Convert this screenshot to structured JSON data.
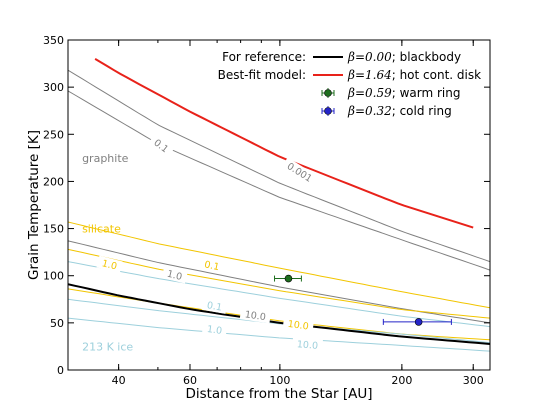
{
  "chart_data": {
    "type": "line",
    "xlabel": "Distance from the Star [AU]",
    "ylabel": "Grain Temperature [K]",
    "xscale": "log",
    "xlim": [
      30,
      330
    ],
    "ylim": [
      0,
      350
    ],
    "xticks": [
      40,
      60,
      100,
      200,
      300
    ],
    "yticks": [
      0,
      50,
      100,
      150,
      200,
      250,
      300,
      350
    ],
    "grid": false,
    "legend": {
      "placement": "top-right",
      "header_reference": "For reference:",
      "header_model": "Best-fit model:"
    },
    "colors": {
      "blackbody": "#000000",
      "disk": "#e8221a",
      "graphite": "#808080",
      "silicate": "#f2c500",
      "ice": "#9dd0dc",
      "warm_ring": "#1e6e1e",
      "cold_ring": "#2424c8"
    },
    "series": [
      {
        "id": "blackbody",
        "name": "β=0.00; blackbody",
        "legend_beta": "β=0.00",
        "legend_desc": "; blackbody",
        "color": "#000000",
        "width": 2,
        "x": [
          30,
          40,
          60,
          100,
          200,
          330
        ],
        "y": [
          91,
          79,
          64.5,
          50,
          35.4,
          27.6
        ]
      },
      {
        "id": "disk",
        "name": "β=1.64; hot cont. disk",
        "legend_beta": "β=1.64",
        "legend_desc": "; hot cont. disk",
        "color": "#e8221a",
        "width": 2,
        "x": [
          35,
          40,
          60,
          100,
          200,
          300
        ],
        "y": [
          330,
          315,
          274,
          226,
          175,
          151
        ]
      }
    ],
    "points": [
      {
        "id": "warm_ring",
        "name": "β=0.59; warm ring",
        "legend_beta": "β=0.59",
        "legend_desc": "; warm ring",
        "color": "#1e6e1e",
        "x": 105,
        "y": 97,
        "xerr": [
          97,
          113
        ]
      },
      {
        "id": "cold_ring",
        "name": "β=0.32; cold ring",
        "legend_beta": "β=0.32",
        "legend_desc": "; cold ring",
        "color": "#2424c8",
        "x": 220,
        "y": 51,
        "xerr": [
          180,
          265
        ]
      }
    ],
    "reference_curves": [
      {
        "material": "graphite",
        "size_label": "0.1",
        "color": "#808080",
        "x": [
          30,
          50,
          100,
          200,
          330
        ],
        "y": [
          318,
          260,
          198,
          147,
          115
        ]
      },
      {
        "material": "graphite",
        "size_label": "0.001",
        "color": "#808080",
        "x": [
          30,
          50,
          100,
          200,
          330
        ],
        "y": [
          296,
          240,
          183,
          138,
          106
        ]
      },
      {
        "material": "graphite",
        "size_label": "1.0",
        "color": "#808080",
        "x": [
          30,
          50,
          100,
          200,
          330
        ],
        "y": [
          137,
          114,
          88,
          65,
          50
        ]
      },
      {
        "material": "silicate",
        "size_label": "0.1",
        "color": "#f2c500",
        "x": [
          30,
          50,
          100,
          200,
          330
        ],
        "y": [
          157,
          134,
          108,
          83,
          66
        ]
      },
      {
        "material": "silicate",
        "size_label": "1.0",
        "color": "#f2c500",
        "x": [
          30,
          50,
          100,
          200,
          330
        ],
        "y": [
          128,
          107,
          84,
          64,
          55
        ]
      },
      {
        "material": "silicate",
        "size_label": "10.0",
        "color": "#f2c500",
        "x": [
          30,
          50,
          100,
          200,
          330
        ],
        "y": [
          86,
          71,
          52,
          38,
          32
        ]
      },
      {
        "material": "213 K ice",
        "size_label": "0.1",
        "color": "#9dd0dc",
        "x": [
          30,
          50,
          100,
          200,
          330
        ],
        "y": [
          115,
          97,
          76,
          57,
          46
        ]
      },
      {
        "material": "213 K ice",
        "size_label": "1.0",
        "color": "#9dd0dc",
        "x": [
          30,
          50,
          100,
          200,
          330
        ],
        "y": [
          75,
          63,
          49,
          38,
          29
        ]
      },
      {
        "material": "213 K ice",
        "size_label": "10.0",
        "color": "#9dd0dc",
        "x": [
          30,
          50,
          100,
          200,
          330
        ],
        "y": [
          55,
          45,
          34,
          26,
          20
        ]
      }
    ],
    "curve_labels": [
      {
        "id": "lbl-graphite-01",
        "text": "0.1",
        "color": "#808080",
        "x": 51,
        "y": 238,
        "rotate": 38
      },
      {
        "id": "lbl-graphite-0001",
        "text": "0.001",
        "color": "#808080",
        "x": 112,
        "y": 210,
        "rotate": 32
      },
      {
        "id": "lbl-graphite-1",
        "text": "1.0",
        "color": "#808080",
        "x": 55,
        "y": 101,
        "rotate": 14
      },
      {
        "id": "lbl-silicate-01",
        "text": "0.1",
        "color": "#f2c500",
        "x": 68,
        "y": 111,
        "rotate": 12
      },
      {
        "id": "lbl-silicate-1",
        "text": "1.0",
        "color": "#f2c500",
        "x": 38,
        "y": 112,
        "rotate": 14
      },
      {
        "id": "lbl-silicate-10",
        "text": "10.0",
        "color": "#f2c500",
        "x": 111,
        "y": 48,
        "rotate": 8
      },
      {
        "id": "lbl-graphite-10",
        "text": "10.0",
        "color": "#808080",
        "x": 87,
        "y": 58,
        "rotate": 8
      },
      {
        "id": "lbl-ice-01",
        "text": "0.1",
        "color": "#9dd0dc",
        "x": 69,
        "y": 68,
        "rotate": 10
      },
      {
        "id": "lbl-ice-1",
        "text": "1.0",
        "color": "#9dd0dc",
        "x": 69,
        "y": 43,
        "rotate": 8
      },
      {
        "id": "lbl-ice-10",
        "text": "10.0",
        "color": "#9dd0dc",
        "x": 117,
        "y": 27,
        "rotate": 5
      }
    ],
    "material_labels": [
      {
        "id": "mat-graphite",
        "text": "graphite",
        "color": "#808080",
        "x": 32.5,
        "y": 225
      },
      {
        "id": "mat-silicate",
        "text": "silicate",
        "color": "#f2c500",
        "x": 32.5,
        "y": 150
      },
      {
        "id": "mat-ice",
        "text": "213 K ice",
        "color": "#9dd0dc",
        "x": 32.5,
        "y": 25
      }
    ]
  }
}
